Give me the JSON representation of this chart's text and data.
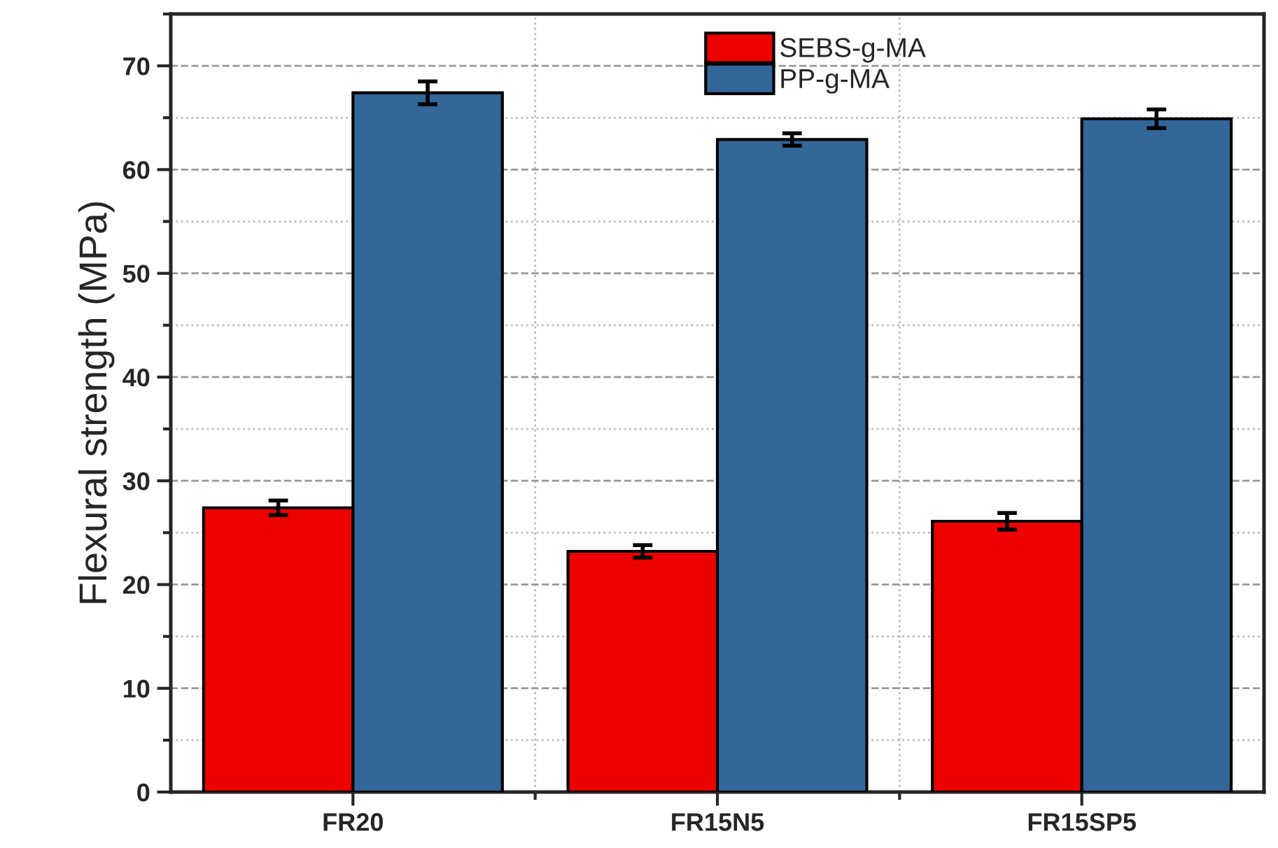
{
  "chart_data": {
    "type": "bar",
    "ylabel": "Flexural strength (MPa)",
    "categories": [
      "FR20",
      "FR15N5",
      "FR15SP5"
    ],
    "series": [
      {
        "name": "SEBS-g-MA",
        "color": "#ec0000",
        "values": [
          27.4,
          23.2,
          26.1
        ],
        "errors": [
          0.7,
          0.6,
          0.8
        ]
      },
      {
        "name": "PP-g-MA",
        "color": "#336699",
        "values": [
          67.4,
          62.9,
          64.9
        ],
        "errors": [
          1.1,
          0.6,
          0.9
        ]
      }
    ],
    "ylim": [
      0,
      75
    ],
    "yticks": [
      0,
      10,
      20,
      30,
      40,
      50,
      60,
      70
    ],
    "grid": true,
    "legend": "top"
  }
}
